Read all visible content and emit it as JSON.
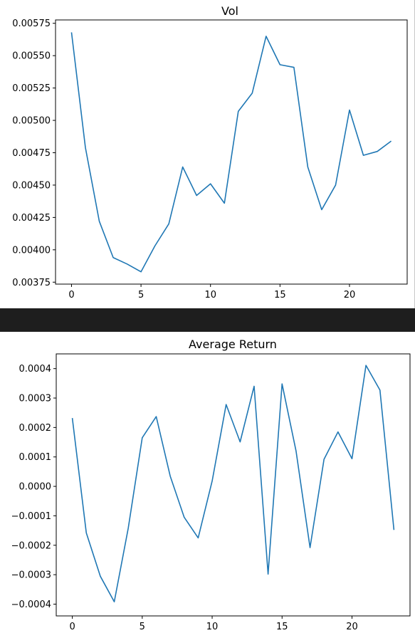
{
  "colors": {
    "line": "#1f77b4",
    "separator": "#1e1e1e"
  },
  "chart_data": [
    {
      "type": "line",
      "title": "Vol",
      "xlabel": "",
      "ylabel": "",
      "x": [
        0,
        1,
        2,
        3,
        4,
        5,
        6,
        7,
        8,
        9,
        10,
        11,
        12,
        13,
        14,
        15,
        16,
        17,
        18,
        19,
        20,
        21,
        22,
        23
      ],
      "series": [
        {
          "values": [
            0.00568,
            0.00479,
            0.00422,
            0.00394,
            0.00389,
            0.00383,
            0.00403,
            0.0042,
            0.00464,
            0.00442,
            0.00451,
            0.00436,
            0.00507,
            0.00521,
            0.00565,
            0.00543,
            0.00541,
            0.00464,
            0.00431,
            0.0045,
            0.00508,
            0.00473,
            0.00476,
            0.00484
          ]
        }
      ],
      "xlim": [
        -1.15,
        24.15
      ],
      "ylim": [
        0.003735,
        0.005776
      ],
      "xticks": [
        0,
        5,
        10,
        15,
        20
      ],
      "xtick_labels": [
        "0",
        "5",
        "10",
        "15",
        "20"
      ],
      "yticks": [
        0.00375,
        0.004,
        0.00425,
        0.0045,
        0.00475,
        0.005,
        0.00525,
        0.0055,
        0.00575
      ],
      "ytick_labels": [
        "0.00375",
        "0.00400",
        "0.00425",
        "0.00450",
        "0.00475",
        "0.00500",
        "0.00525",
        "0.00550",
        "0.00575"
      ],
      "grid": false
    },
    {
      "type": "line",
      "title": "Average Return",
      "xlabel": "",
      "ylabel": "",
      "x": [
        0,
        1,
        2,
        3,
        4,
        5,
        6,
        7,
        8,
        9,
        10,
        11,
        12,
        13,
        14,
        15,
        16,
        17,
        18,
        19,
        20,
        21,
        22,
        23
      ],
      "series": [
        {
          "values": [
            0.000232,
            -0.000158,
            -0.000305,
            -0.000392,
            -0.000142,
            0.000165,
            0.000237,
            3.5e-05,
            -0.000105,
            -0.000175,
            1.8e-05,
            0.000278,
            0.000151,
            0.00034,
            -0.000298,
            0.000348,
            0.00012,
            -0.000208,
            9.2e-05,
            0.000185,
            9.4e-05,
            0.000411,
            0.000327,
            -0.000148
          ]
        }
      ],
      "xlim": [
        -1.15,
        24.15
      ],
      "ylim": [
        -0.00044,
        0.00045
      ],
      "xticks": [
        0,
        5,
        10,
        15,
        20
      ],
      "xtick_labels": [
        "0",
        "5",
        "10",
        "15",
        "20"
      ],
      "yticks": [
        -0.0004,
        -0.0003,
        -0.0002,
        -0.0001,
        0.0,
        0.0001,
        0.0002,
        0.0003,
        0.0004
      ],
      "ytick_labels": [
        "−0.0004",
        "−0.0003",
        "−0.0002",
        "−0.0001",
        "0.0000",
        "0.0001",
        "0.0002",
        "0.0003",
        "0.0004"
      ],
      "grid": false
    }
  ]
}
